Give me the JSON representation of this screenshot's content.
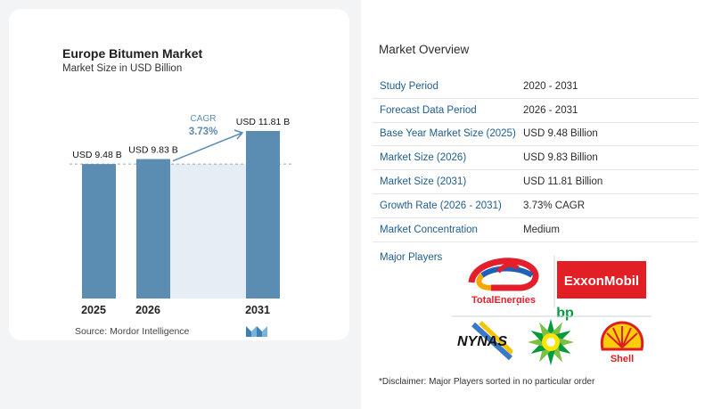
{
  "chart_data": {
    "type": "bar",
    "title": "Europe Bitumen Market",
    "subtitle": "Market Size in USD Billion",
    "categories": [
      "2025",
      "2026",
      "2031"
    ],
    "values": [
      9.48,
      9.83,
      11.81
    ],
    "value_labels": [
      "USD 9.48 B",
      "USD 9.83 B",
      "USD 11.81 B"
    ],
    "cagr_label": "CAGR",
    "cagr_value": "3.73%",
    "bar_color": "#5b8db3",
    "dashed_reference": 9.48
  },
  "source": "Source:  Mordor Intelligence",
  "overview": {
    "title": "Market Overview",
    "rows": [
      {
        "label": "Study Period",
        "value": "2020 - 2031"
      },
      {
        "label": "Forecast Data Period",
        "value": "2026 - 2031"
      },
      {
        "label": "Base Year Market Size (2025)",
        "value": "USD 9.48 Billion"
      },
      {
        "label": "Market Size (2026)",
        "value": "USD 9.83 Billion"
      },
      {
        "label": "Market Size (2031)",
        "value": "USD 11.81 Billion"
      },
      {
        "label": "Growth Rate (2026 - 2031)",
        "value": "3.73% CAGR"
      },
      {
        "label": "Market Concentration",
        "value": "Medium"
      }
    ]
  },
  "players": {
    "label": "Major Players",
    "names": [
      "TotalEnergies",
      "ExxonMobil",
      "NYNAS",
      "bp",
      "Shell"
    ]
  },
  "disclaimer": "*Disclaimer: Major Players sorted in no particular order",
  "colors": {
    "accent": "#1f5d8a",
    "bar": "#5b8db3",
    "cagr": "#5a8bb5"
  }
}
